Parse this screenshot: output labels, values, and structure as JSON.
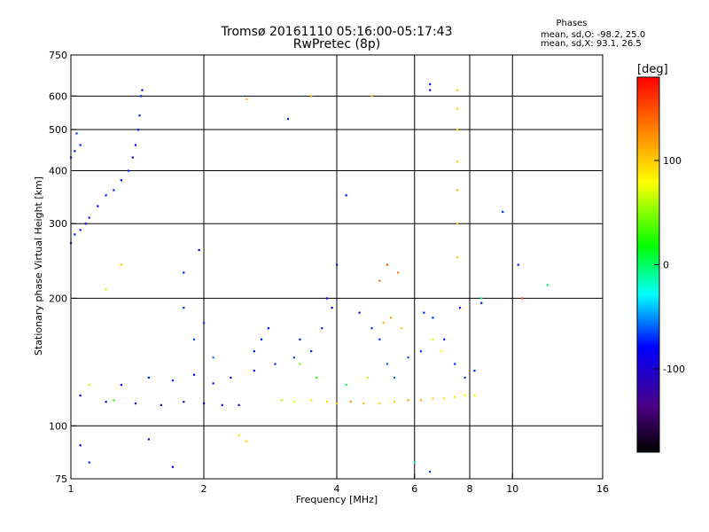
{
  "chart_data": {
    "type": "scatter",
    "title": "Tromsø 20161110 05:16:00-05:17:43",
    "subtitle": "RwPretec (8p)",
    "info_header": "Phases",
    "info_line1": "mean, sd,O: -98.2, 25.0",
    "info_line2": "mean, sd,X:  93.1, 26.5",
    "xlabel": "Frequency [MHz]",
    "ylabel": "Stationary phase Virtual Height [km]",
    "x_scale": "log",
    "y_scale": "log",
    "xlim": [
      1,
      16
    ],
    "ylim": [
      75,
      750
    ],
    "x_ticks": [
      1,
      2,
      4,
      6,
      8,
      10,
      16
    ],
    "x_tick_labels": [
      "1",
      "2",
      "4",
      "6",
      "8",
      "10",
      "16"
    ],
    "x_grid": [
      2,
      4,
      6,
      8,
      10
    ],
    "y_ticks": [
      75,
      100,
      200,
      300,
      400,
      500,
      600,
      750
    ],
    "y_tick_labels": [
      "75",
      "100",
      "200",
      "300",
      "400",
      "500",
      "600",
      "750"
    ],
    "y_grid": [
      100,
      200,
      300,
      400,
      500,
      600
    ],
    "grid": true,
    "colorbar": {
      "label": "[deg]",
      "range": [
        -180,
        180
      ],
      "ticks": [
        100,
        0,
        -100
      ],
      "tick_labels": [
        "100",
        "0",
        "-100"
      ]
    },
    "series": [
      {
        "values": [
          [
            1.0,
            270
          ],
          [
            1.02,
            283
          ],
          [
            1.05,
            290
          ],
          [
            1.08,
            300
          ],
          [
            1.1,
            310
          ],
          [
            1.15,
            330
          ],
          [
            1.2,
            350
          ],
          [
            1.25,
            360
          ],
          [
            1.3,
            380
          ],
          [
            1.35,
            400
          ],
          [
            1.38,
            430
          ],
          [
            1.4,
            460
          ],
          [
            1.42,
            500
          ],
          [
            1.43,
            540
          ],
          [
            1.44,
            600
          ],
          [
            1.45,
            620
          ],
          [
            1.0,
            430
          ],
          [
            1.02,
            445
          ],
          [
            1.05,
            460
          ],
          [
            1.03,
            490
          ]
        ],
        "phase": [
          -90,
          -92,
          -95,
          -98,
          -95,
          -100,
          -97,
          -93,
          -96,
          -94,
          -98,
          -100,
          -95,
          -92,
          -96,
          -99,
          -90,
          -94,
          -96,
          -88
        ]
      },
      {
        "values": [
          [
            1.05,
            118
          ],
          [
            1.2,
            114
          ],
          [
            1.4,
            113
          ],
          [
            1.6,
            112
          ],
          [
            1.8,
            114
          ],
          [
            2.0,
            113
          ],
          [
            2.2,
            112
          ],
          [
            2.4,
            112
          ],
          [
            1.3,
            125
          ],
          [
            1.5,
            130
          ],
          [
            1.7,
            128
          ],
          [
            1.9,
            132
          ],
          [
            2.1,
            126
          ],
          [
            2.3,
            130
          ],
          [
            2.6,
            135
          ],
          [
            1.9,
            160
          ],
          [
            2.0,
            175
          ],
          [
            1.8,
            190
          ],
          [
            2.1,
            145
          ],
          [
            1.8,
            230
          ],
          [
            1.95,
            260
          ],
          [
            2.6,
            150
          ],
          [
            2.7,
            160
          ],
          [
            2.8,
            170
          ],
          [
            2.9,
            140
          ],
          [
            3.2,
            145
          ],
          [
            3.5,
            150
          ],
          [
            3.3,
            160
          ],
          [
            3.7,
            170
          ],
          [
            3.9,
            190
          ],
          [
            4.0,
            240
          ],
          [
            3.8,
            200
          ],
          [
            4.5,
            185
          ],
          [
            4.8,
            170
          ],
          [
            5.0,
            160
          ],
          [
            5.2,
            140
          ],
          [
            5.4,
            130
          ],
          [
            5.8,
            145
          ],
          [
            6.2,
            150
          ],
          [
            6.6,
            180
          ],
          [
            7.0,
            160
          ],
          [
            7.4,
            140
          ],
          [
            7.8,
            130
          ],
          [
            8.2,
            135
          ],
          [
            8.5,
            195
          ],
          [
            7.6,
            190
          ],
          [
            6.3,
            185
          ]
        ],
        "phase": [
          -100,
          -110,
          -115,
          -118,
          -120,
          -112,
          -108,
          -105,
          -100,
          -95,
          -90,
          -98,
          -95,
          -102,
          -100,
          -80,
          -85,
          -90,
          -70,
          -95,
          -100,
          -92,
          -96,
          -98,
          -88,
          -85,
          -90,
          -95,
          -92,
          -100,
          -95,
          -98,
          -96,
          -90,
          -85,
          -75,
          -70,
          -80,
          -85,
          -90,
          -95,
          -92,
          -88,
          -90,
          -95,
          -100,
          -92
        ]
      },
      {
        "values": [
          [
            3.0,
            115
          ],
          [
            3.2,
            114
          ],
          [
            3.5,
            115
          ],
          [
            3.8,
            114
          ],
          [
            4.0,
            113
          ],
          [
            4.3,
            114
          ],
          [
            4.6,
            113
          ],
          [
            5.0,
            113
          ],
          [
            5.4,
            114
          ],
          [
            5.8,
            115
          ],
          [
            6.2,
            115
          ],
          [
            6.6,
            116
          ],
          [
            7.0,
            116
          ],
          [
            7.4,
            117
          ],
          [
            7.8,
            118
          ],
          [
            8.2,
            118
          ],
          [
            3.3,
            140
          ],
          [
            3.6,
            130
          ],
          [
            4.2,
            125
          ],
          [
            4.7,
            130
          ],
          [
            5.1,
            175
          ],
          [
            5.3,
            180
          ],
          [
            5.6,
            170
          ],
          [
            5.0,
            220
          ],
          [
            5.2,
            240
          ],
          [
            5.5,
            230
          ],
          [
            6.6,
            160
          ],
          [
            6.9,
            150
          ],
          [
            2.4,
            95
          ],
          [
            2.5,
            92
          ],
          [
            1.25,
            115
          ],
          [
            1.1,
            125
          ],
          [
            7.5,
            250
          ],
          [
            7.5,
            300
          ],
          [
            7.5,
            360
          ],
          [
            7.5,
            420
          ],
          [
            7.5,
            500
          ],
          [
            7.5,
            560
          ],
          [
            7.5,
            620
          ]
        ],
        "phase": [
          60,
          80,
          90,
          100,
          110,
          120,
          105,
          95,
          100,
          115,
          110,
          100,
          95,
          90,
          85,
          80,
          40,
          20,
          0,
          60,
          110,
          120,
          100,
          140,
          150,
          130,
          70,
          80,
          90,
          95,
          20,
          60,
          100,
          105,
          110,
          100,
          95,
          100,
          100
        ]
      },
      {
        "values": [
          [
            1.7,
            80
          ],
          [
            1.05,
            90
          ],
          [
            1.1,
            82
          ],
          [
            1.5,
            93
          ],
          [
            6.5,
            78
          ],
          [
            6.0,
            82
          ],
          [
            1.2,
            210
          ],
          [
            1.3,
            240
          ],
          [
            2.5,
            590
          ],
          [
            3.5,
            600
          ],
          [
            4.8,
            600
          ],
          [
            4.2,
            350
          ],
          [
            9.5,
            320
          ],
          [
            10.5,
            200
          ],
          [
            10.3,
            240
          ],
          [
            12.0,
            215
          ],
          [
            8.5,
            200
          ],
          [
            6.5,
            620
          ],
          [
            6.5,
            640
          ],
          [
            3.1,
            530
          ]
        ],
        "phase": [
          -110,
          -100,
          -90,
          -95,
          -85,
          -20,
          60,
          100,
          110,
          115,
          105,
          -95,
          -90,
          150,
          -92,
          0,
          -10,
          -100,
          -95,
          -90
        ]
      }
    ]
  }
}
